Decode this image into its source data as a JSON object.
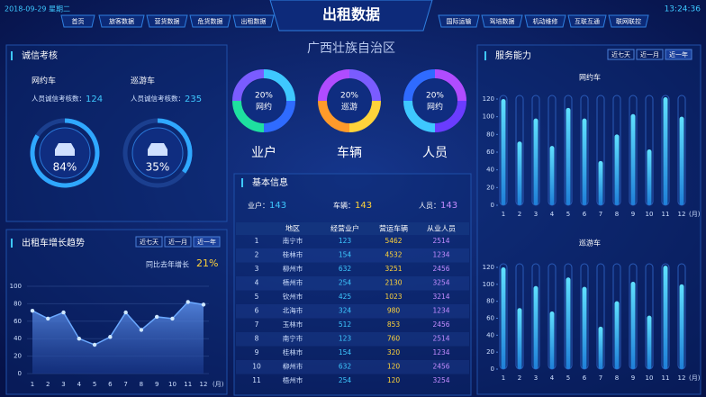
{
  "header": {
    "date": "2018-09-29 星期二",
    "time": "13:24:36",
    "title": "出租数据",
    "region": "广西壮族自治区",
    "nav_left": [
      "首页",
      "旅客数据",
      "营货数据",
      "危货数据",
      "出租数据"
    ],
    "nav_right": [
      "国际运输",
      "驾培数据",
      "机动维修",
      "互联互通",
      "联网联控"
    ]
  },
  "integrity": {
    "title": "诚信考核",
    "items": [
      {
        "name": "网约车",
        "label": "人员诚信考核数：",
        "value": 124,
        "percent": 84,
        "percent_label": "84%"
      },
      {
        "name": "巡游车",
        "label": "人员诚信考核数：",
        "value": 235,
        "percent": 35,
        "percent_label": "35%"
      }
    ]
  },
  "donuts": [
    {
      "value": "20%",
      "inner": "网约",
      "label": "业户"
    },
    {
      "value": "20%",
      "inner": "巡游",
      "label": "车辆"
    },
    {
      "value": "20%",
      "inner": "网约",
      "label": "人员"
    }
  ],
  "growth": {
    "title": "出租车增长趋势",
    "buttons": [
      "近七天",
      "近一月",
      "近一年"
    ],
    "note": "同比去年增长",
    "note_value": "21%",
    "chart_data": {
      "type": "line",
      "categories": [
        "1",
        "2",
        "3",
        "4",
        "5",
        "6",
        "7",
        "8",
        "9",
        "10",
        "11",
        "12"
      ],
      "x_unit": "(月)",
      "values": [
        72,
        63,
        70,
        40,
        33,
        42,
        70,
        50,
        65,
        63,
        82,
        79
      ],
      "ylim": [
        0,
        100
      ],
      "yticks": [
        0,
        20,
        40,
        60,
        80,
        100
      ],
      "grid": true,
      "color": "#6aa8ff"
    }
  },
  "info": {
    "title": "基本信息",
    "summary": [
      {
        "label": "业户：",
        "value": 143
      },
      {
        "label": "车辆：",
        "value": 143
      },
      {
        "label": "人员：",
        "value": 143
      }
    ],
    "columns": [
      "地区",
      "经营业户",
      "营运车辆",
      "从业人员"
    ],
    "rows": [
      [
        1,
        "南宁市",
        123,
        5462,
        2514
      ],
      [
        2,
        "桂林市",
        154,
        4532,
        1234
      ],
      [
        3,
        "柳州市",
        632,
        3251,
        2456
      ],
      [
        4,
        "梧州市",
        254,
        2130,
        3254
      ],
      [
        5,
        "钦州市",
        425,
        1023,
        3214
      ],
      [
        6,
        "北海市",
        324,
        980,
        1234
      ],
      [
        7,
        "玉林市",
        512,
        853,
        2456
      ],
      [
        8,
        "南宁市",
        123,
        760,
        2514
      ],
      [
        9,
        "桂林市",
        154,
        320,
        1234
      ],
      [
        10,
        "柳州市",
        632,
        120,
        2456
      ],
      [
        11,
        "梧州市",
        254,
        120,
        3254
      ]
    ]
  },
  "service": {
    "title": "服务能力",
    "buttons": [
      "近七天",
      "近一月",
      "近一年"
    ],
    "charts": [
      {
        "type": "bar",
        "title": "网约车",
        "categories": [
          "1",
          "2",
          "3",
          "4",
          "5",
          "6",
          "7",
          "8",
          "9",
          "10",
          "11",
          "12"
        ],
        "x_unit": "(月)",
        "values": [
          120,
          72,
          98,
          67,
          110,
          98,
          50,
          80,
          103,
          63,
          122,
          100
        ],
        "ylim": [
          0,
          120
        ],
        "yticks": [
          0,
          20,
          40,
          60,
          80,
          100,
          120
        ],
        "color": "#3ec8ff"
      },
      {
        "type": "bar",
        "title": "巡游车",
        "categories": [
          "1",
          "2",
          "3",
          "4",
          "5",
          "6",
          "7",
          "8",
          "9",
          "10",
          "11",
          "12"
        ],
        "x_unit": "(月)",
        "values": [
          120,
          72,
          98,
          68,
          108,
          97,
          50,
          80,
          103,
          63,
          122,
          100
        ],
        "ylim": [
          0,
          120
        ],
        "yticks": [
          0,
          20,
          40,
          60,
          80,
          100,
          120
        ],
        "color": "#3ec8ff"
      }
    ]
  }
}
